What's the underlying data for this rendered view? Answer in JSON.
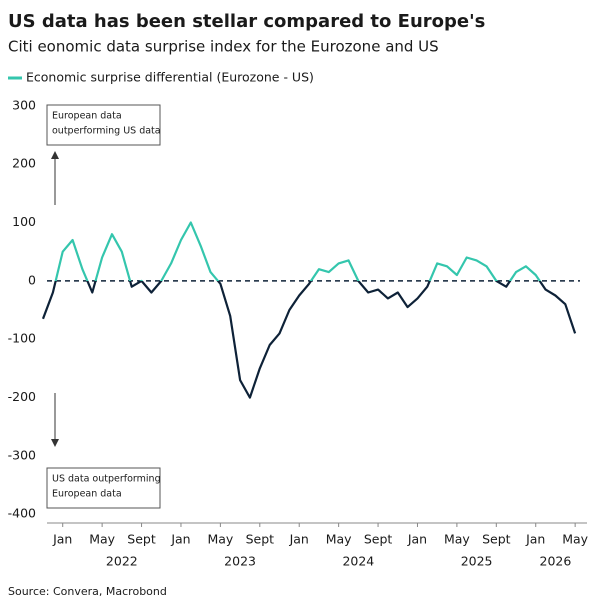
{
  "chart_data": {
    "type": "line",
    "title": "US data has been stellar compared to Europe's",
    "subtitle": "Citi eonomic data surprise index for the Eurozone and US",
    "source": "Source: Convera, Macrobond",
    "x": [
      "2021-11",
      "2021-12",
      "2022-01",
      "2022-02",
      "2022-03",
      "2022-04",
      "2022-05",
      "2022-06",
      "2022-07",
      "2022-08",
      "2022-09",
      "2022-10",
      "2022-11",
      "2022-12",
      "2023-01",
      "2023-02",
      "2023-03",
      "2023-04",
      "2023-05",
      "2023-06",
      "2023-07",
      "2023-08",
      "2023-09",
      "2023-10",
      "2023-11",
      "2023-12",
      "2024-01",
      "2024-02",
      "2024-03",
      "2024-04",
      "2024-05",
      "2024-06",
      "2024-07",
      "2024-08",
      "2024-09",
      "2024-10",
      "2024-11",
      "2024-12",
      "2025-01",
      "2025-02",
      "2025-03",
      "2025-04",
      "2025-05",
      "2025-06",
      "2025-07",
      "2025-08",
      "2025-09",
      "2025-10",
      "2025-11",
      "2025-12",
      "2026-01",
      "2026-02",
      "2026-03",
      "2026-04",
      "2026-05"
    ],
    "series": [
      {
        "name": "Economic surprise differential (Eurozone - US)",
        "color": "#34c6ad",
        "negative_color": "#0e2238",
        "values": [
          -65,
          -20,
          50,
          70,
          20,
          -20,
          40,
          80,
          50,
          -10,
          0,
          -20,
          0,
          30,
          70,
          100,
          60,
          15,
          -5,
          -60,
          -170,
          -200,
          -150,
          -110,
          -90,
          -50,
          -25,
          -5,
          20,
          15,
          30,
          35,
          0,
          -20,
          -15,
          -30,
          -20,
          -45,
          -30,
          -10,
          30,
          25,
          10,
          40,
          35,
          25,
          0,
          -10,
          15,
          25,
          10,
          -15,
          -25,
          -40,
          -90
        ]
      }
    ],
    "xlim": [
      "2021-11",
      "2026-06"
    ],
    "xticks": [
      {
        "value": "2022-01",
        "label": "Jan"
      },
      {
        "value": "2022-05",
        "label": "May"
      },
      {
        "value": "2022-09",
        "label": "Sept"
      },
      {
        "value": "2023-01",
        "label": "Jan"
      },
      {
        "value": "2023-05",
        "label": "May"
      },
      {
        "value": "2023-09",
        "label": "Sept"
      },
      {
        "value": "2024-01",
        "label": "Jan"
      },
      {
        "value": "2024-05",
        "label": "May"
      },
      {
        "value": "2024-09",
        "label": "Sept"
      },
      {
        "value": "2025-01",
        "label": "Jan"
      },
      {
        "value": "2025-05",
        "label": "May"
      },
      {
        "value": "2025-09",
        "label": "Sept"
      },
      {
        "value": "2026-01",
        "label": "Jan"
      },
      {
        "value": "2026-05",
        "label": "May"
      }
    ],
    "year_labels": [
      {
        "value": "2022-07",
        "label": "2022"
      },
      {
        "value": "2023-07",
        "label": "2023"
      },
      {
        "value": "2024-07",
        "label": "2024"
      },
      {
        "value": "2025-07",
        "label": "2025"
      },
      {
        "value": "2026-03",
        "label": "2026"
      }
    ],
    "ylim": [
      -415,
      310
    ],
    "yticks": [
      300,
      200,
      100,
      0,
      -100,
      -200,
      -300,
      -400
    ],
    "reference_line": 0,
    "annotations": [
      {
        "lines": [
          "European data",
          "outperforming US data"
        ],
        "direction": "up"
      },
      {
        "lines": [
          "US data outperforming",
          "European data"
        ],
        "direction": "down"
      }
    ]
  }
}
